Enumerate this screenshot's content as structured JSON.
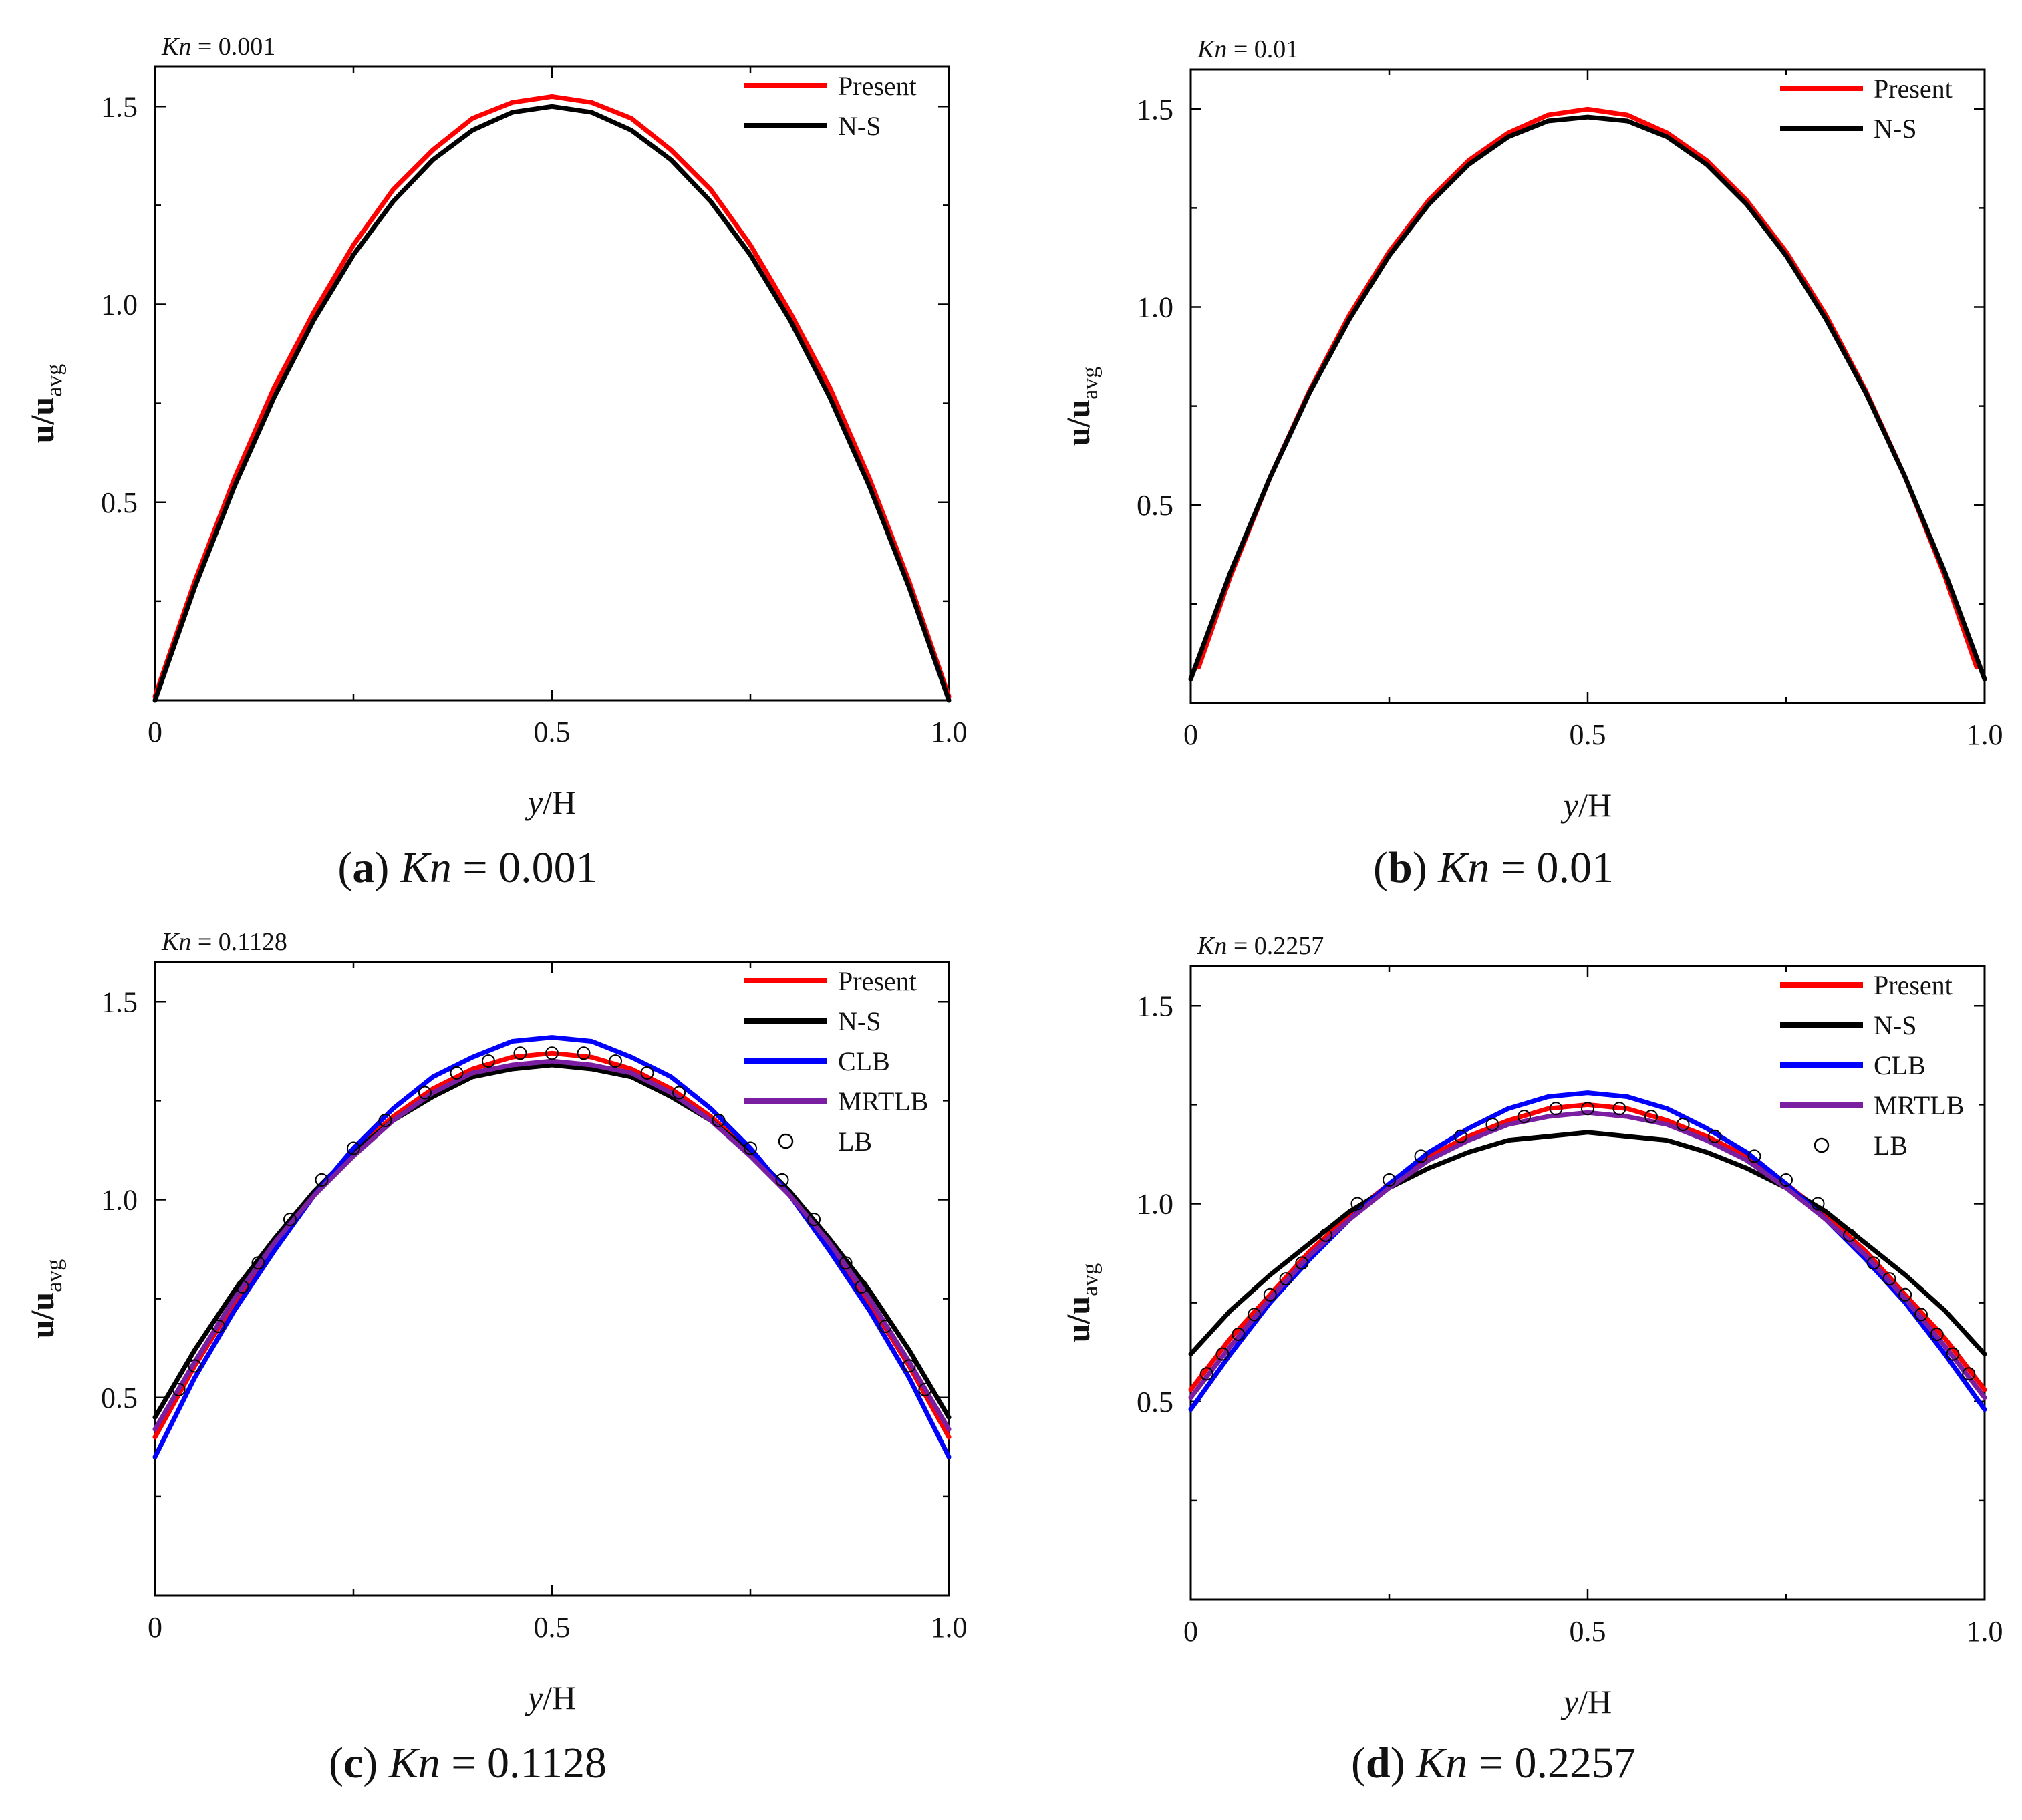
{
  "figure": {
    "panels": [
      {
        "id": "a",
        "kn_label": "Kn",
        "kn_value": " = 0.001",
        "caption_letter": "a",
        "caption_kn": "Kn",
        "caption_value": " = 0.001"
      },
      {
        "id": "b",
        "kn_label": "Kn",
        "kn_value": " = 0.01",
        "caption_letter": "b",
        "caption_kn": "Kn",
        "caption_value": " = 0.01"
      },
      {
        "id": "c",
        "kn_label": "Kn",
        "kn_value": " = 0.1128",
        "caption_letter": "c",
        "caption_kn": "Kn",
        "caption_value": " = 0.1128"
      },
      {
        "id": "d",
        "kn_label": "Kn",
        "kn_value": " = 0.2257",
        "caption_letter": "d",
        "caption_kn": "Kn",
        "caption_value": " = 0.2257"
      }
    ]
  },
  "chart_data": [
    {
      "type": "line",
      "title": "Kn = 0.001",
      "xlabel": "y/H",
      "ylabel": "u/u_avg",
      "xlim": [
        0,
        1
      ],
      "ylim": [
        0,
        1.6
      ],
      "xticks": [
        {
          "value": 0,
          "label": "0"
        },
        {
          "value": 0.5,
          "label": "0.5"
        },
        {
          "value": 1,
          "label": "1.0"
        }
      ],
      "yticks": [
        {
          "value": 0.5,
          "label": "0.5"
        },
        {
          "value": 1.0,
          "label": "1.0"
        },
        {
          "value": 1.5,
          "label": "1.5"
        }
      ],
      "legend_position": "top-right",
      "series": [
        {
          "name": "Present",
          "color": "#ff0000",
          "style": "line",
          "x": [
            0,
            0.05,
            0.1,
            0.15,
            0.2,
            0.25,
            0.3,
            0.35,
            0.4,
            0.45,
            0.5,
            0.55,
            0.6,
            0.65,
            0.7,
            0.75,
            0.8,
            0.85,
            0.9,
            0.95,
            1
          ],
          "y": [
            0.01,
            0.3,
            0.56,
            0.79,
            0.98,
            1.15,
            1.29,
            1.39,
            1.47,
            1.51,
            1.525,
            1.51,
            1.47,
            1.39,
            1.29,
            1.15,
            0.98,
            0.79,
            0.56,
            0.3,
            0.01
          ]
        },
        {
          "name": "N-S",
          "color": "#000000",
          "style": "line",
          "x": [
            0,
            0.05,
            0.1,
            0.15,
            0.2,
            0.25,
            0.3,
            0.35,
            0.4,
            0.45,
            0.5,
            0.55,
            0.6,
            0.65,
            0.7,
            0.75,
            0.8,
            0.85,
            0.9,
            0.95,
            1
          ],
          "y": [
            0,
            0.285,
            0.54,
            0.765,
            0.96,
            1.125,
            1.26,
            1.365,
            1.44,
            1.485,
            1.5,
            1.485,
            1.44,
            1.365,
            1.26,
            1.125,
            0.96,
            0.765,
            0.54,
            0.285,
            0
          ]
        }
      ]
    },
    {
      "type": "line",
      "title": "Kn = 0.01",
      "xlabel": "y/H",
      "ylabel": "u/u_avg",
      "xlim": [
        0,
        1
      ],
      "ylim": [
        0,
        1.6
      ],
      "xticks": [
        {
          "value": 0,
          "label": "0"
        },
        {
          "value": 0.5,
          "label": "0.5"
        },
        {
          "value": 1,
          "label": "1.0"
        }
      ],
      "yticks": [
        {
          "value": 0.5,
          "label": "0.5"
        },
        {
          "value": 1.0,
          "label": "1.0"
        },
        {
          "value": 1.5,
          "label": "1.5"
        }
      ],
      "legend_position": "top-right",
      "series": [
        {
          "name": "Present",
          "color": "#ff0000",
          "style": "line",
          "x": [
            0.01,
            0.05,
            0.1,
            0.15,
            0.2,
            0.25,
            0.3,
            0.35,
            0.4,
            0.45,
            0.5,
            0.55,
            0.6,
            0.65,
            0.7,
            0.75,
            0.8,
            0.85,
            0.9,
            0.95,
            0.99
          ],
          "y": [
            0.09,
            0.32,
            0.57,
            0.79,
            0.98,
            1.14,
            1.27,
            1.37,
            1.44,
            1.485,
            1.5,
            1.485,
            1.44,
            1.37,
            1.27,
            1.14,
            0.98,
            0.79,
            0.57,
            0.32,
            0.09
          ]
        },
        {
          "name": "N-S",
          "color": "#000000",
          "style": "line",
          "x": [
            0,
            0.05,
            0.1,
            0.15,
            0.2,
            0.25,
            0.3,
            0.35,
            0.4,
            0.45,
            0.5,
            0.55,
            0.6,
            0.65,
            0.7,
            0.75,
            0.8,
            0.85,
            0.9,
            0.95,
            1
          ],
          "y": [
            0.06,
            0.33,
            0.57,
            0.785,
            0.97,
            1.13,
            1.26,
            1.36,
            1.43,
            1.47,
            1.48,
            1.47,
            1.43,
            1.36,
            1.26,
            1.13,
            0.97,
            0.785,
            0.57,
            0.33,
            0.06
          ]
        }
      ]
    },
    {
      "type": "line",
      "title": "Kn = 0.1128",
      "xlabel": "y/H",
      "ylabel": "u/u_avg",
      "xlim": [
        0,
        1
      ],
      "ylim": [
        0,
        1.6
      ],
      "xticks": [
        {
          "value": 0,
          "label": "0"
        },
        {
          "value": 0.5,
          "label": "0.5"
        },
        {
          "value": 1,
          "label": "1.0"
        }
      ],
      "yticks": [
        {
          "value": 0.5,
          "label": "0.5"
        },
        {
          "value": 1.0,
          "label": "1.0"
        },
        {
          "value": 1.5,
          "label": "1.5"
        }
      ],
      "legend_position": "top-right",
      "series": [
        {
          "name": "Present",
          "color": "#ff0000",
          "style": "line",
          "x": [
            0,
            0.05,
            0.1,
            0.15,
            0.2,
            0.25,
            0.3,
            0.35,
            0.4,
            0.45,
            0.5,
            0.55,
            0.6,
            0.65,
            0.7,
            0.75,
            0.8,
            0.85,
            0.9,
            0.95,
            1
          ],
          "y": [
            0.4,
            0.58,
            0.74,
            0.88,
            1.01,
            1.12,
            1.21,
            1.28,
            1.33,
            1.36,
            1.37,
            1.36,
            1.33,
            1.28,
            1.21,
            1.12,
            1.01,
            0.88,
            0.74,
            0.58,
            0.4
          ]
        },
        {
          "name": "N-S",
          "color": "#000000",
          "style": "line",
          "x": [
            0,
            0.05,
            0.1,
            0.15,
            0.2,
            0.25,
            0.3,
            0.35,
            0.4,
            0.45,
            0.5,
            0.55,
            0.6,
            0.65,
            0.7,
            0.75,
            0.8,
            0.85,
            0.9,
            0.95,
            1
          ],
          "y": [
            0.45,
            0.62,
            0.77,
            0.9,
            1.02,
            1.12,
            1.2,
            1.26,
            1.31,
            1.33,
            1.34,
            1.33,
            1.31,
            1.26,
            1.2,
            1.12,
            1.02,
            0.9,
            0.77,
            0.62,
            0.45
          ]
        },
        {
          "name": "CLB",
          "color": "#0000ff",
          "style": "line",
          "x": [
            0,
            0.05,
            0.1,
            0.15,
            0.2,
            0.25,
            0.3,
            0.35,
            0.4,
            0.45,
            0.5,
            0.55,
            0.6,
            0.65,
            0.7,
            0.75,
            0.8,
            0.85,
            0.9,
            0.95,
            1
          ],
          "y": [
            0.35,
            0.55,
            0.72,
            0.87,
            1.01,
            1.13,
            1.23,
            1.31,
            1.36,
            1.4,
            1.41,
            1.4,
            1.36,
            1.31,
            1.23,
            1.13,
            1.01,
            0.87,
            0.72,
            0.55,
            0.35
          ]
        },
        {
          "name": "MRTLB",
          "color": "#7b1fa2",
          "style": "line",
          "x": [
            0,
            0.05,
            0.1,
            0.15,
            0.2,
            0.25,
            0.3,
            0.35,
            0.4,
            0.45,
            0.5,
            0.55,
            0.6,
            0.65,
            0.7,
            0.75,
            0.8,
            0.85,
            0.9,
            0.95,
            1
          ],
          "y": [
            0.42,
            0.59,
            0.75,
            0.89,
            1.01,
            1.11,
            1.2,
            1.27,
            1.32,
            1.34,
            1.35,
            1.34,
            1.32,
            1.27,
            1.2,
            1.11,
            1.01,
            0.89,
            0.75,
            0.59,
            0.42
          ]
        },
        {
          "name": "LB",
          "color": "#000000",
          "style": "marker",
          "x": [
            0.03,
            0.05,
            0.08,
            0.11,
            0.13,
            0.17,
            0.21,
            0.25,
            0.29,
            0.34,
            0.38,
            0.42,
            0.46,
            0.5,
            0.54,
            0.58,
            0.62,
            0.66,
            0.71,
            0.75,
            0.79,
            0.83,
            0.87,
            0.89,
            0.92,
            0.95,
            0.97
          ],
          "y": [
            0.52,
            0.58,
            0.68,
            0.78,
            0.84,
            0.95,
            1.05,
            1.13,
            1.2,
            1.27,
            1.32,
            1.35,
            1.37,
            1.37,
            1.37,
            1.35,
            1.32,
            1.27,
            1.2,
            1.13,
            1.05,
            0.95,
            0.84,
            0.78,
            0.68,
            0.58,
            0.52
          ]
        }
      ]
    },
    {
      "type": "line",
      "title": "Kn = 0.2257",
      "xlabel": "y/H",
      "ylabel": "u/u_avg",
      "xlim": [
        0,
        1
      ],
      "ylim": [
        0,
        1.6
      ],
      "xticks": [
        {
          "value": 0,
          "label": "0"
        },
        {
          "value": 0.5,
          "label": "0.5"
        },
        {
          "value": 1,
          "label": "1.0"
        }
      ],
      "yticks": [
        {
          "value": 0.5,
          "label": "0.5"
        },
        {
          "value": 1.0,
          "label": "1.0"
        },
        {
          "value": 1.5,
          "label": "1.5"
        }
      ],
      "legend_position": "top-right",
      "series": [
        {
          "name": "Present",
          "color": "#ff0000",
          "style": "line",
          "x": [
            0,
            0.05,
            0.1,
            0.15,
            0.2,
            0.25,
            0.3,
            0.35,
            0.4,
            0.45,
            0.5,
            0.55,
            0.6,
            0.65,
            0.7,
            0.75,
            0.8,
            0.85,
            0.9,
            0.95,
            1
          ],
          "y": [
            0.53,
            0.66,
            0.77,
            0.88,
            0.97,
            1.05,
            1.12,
            1.17,
            1.21,
            1.24,
            1.25,
            1.24,
            1.21,
            1.17,
            1.12,
            1.05,
            0.97,
            0.88,
            0.77,
            0.66,
            0.53
          ]
        },
        {
          "name": "N-S",
          "color": "#000000",
          "style": "line",
          "x": [
            0,
            0.05,
            0.1,
            0.15,
            0.2,
            0.25,
            0.3,
            0.35,
            0.4,
            0.45,
            0.5,
            0.55,
            0.6,
            0.65,
            0.7,
            0.75,
            0.8,
            0.85,
            0.9,
            0.95,
            1
          ],
          "y": [
            0.62,
            0.73,
            0.82,
            0.9,
            0.98,
            1.04,
            1.09,
            1.13,
            1.16,
            1.17,
            1.18,
            1.17,
            1.16,
            1.13,
            1.09,
            1.04,
            0.98,
            0.9,
            0.82,
            0.73,
            0.62
          ]
        },
        {
          "name": "CLB",
          "color": "#0000ff",
          "style": "line",
          "x": [
            0,
            0.05,
            0.1,
            0.15,
            0.2,
            0.25,
            0.3,
            0.35,
            0.4,
            0.45,
            0.5,
            0.55,
            0.6,
            0.65,
            0.7,
            0.75,
            0.8,
            0.85,
            0.9,
            0.95,
            1
          ],
          "y": [
            0.48,
            0.62,
            0.75,
            0.86,
            0.96,
            1.05,
            1.13,
            1.19,
            1.24,
            1.27,
            1.28,
            1.27,
            1.24,
            1.19,
            1.13,
            1.05,
            0.96,
            0.86,
            0.75,
            0.62,
            0.48
          ]
        },
        {
          "name": "MRTLB",
          "color": "#7b1fa2",
          "style": "line",
          "x": [
            0,
            0.05,
            0.1,
            0.15,
            0.2,
            0.25,
            0.3,
            0.35,
            0.4,
            0.45,
            0.5,
            0.55,
            0.6,
            0.65,
            0.7,
            0.75,
            0.8,
            0.85,
            0.9,
            0.95,
            1
          ],
          "y": [
            0.51,
            0.64,
            0.76,
            0.87,
            0.96,
            1.04,
            1.11,
            1.16,
            1.2,
            1.22,
            1.23,
            1.22,
            1.2,
            1.16,
            1.11,
            1.04,
            0.96,
            0.87,
            0.76,
            0.64,
            0.51
          ]
        },
        {
          "name": "LB",
          "color": "#000000",
          "style": "marker",
          "x": [
            0.02,
            0.04,
            0.06,
            0.08,
            0.1,
            0.12,
            0.14,
            0.17,
            0.21,
            0.25,
            0.29,
            0.34,
            0.38,
            0.42,
            0.46,
            0.5,
            0.54,
            0.58,
            0.62,
            0.66,
            0.71,
            0.75,
            0.79,
            0.83,
            0.86,
            0.88,
            0.9,
            0.92,
            0.94,
            0.96,
            0.98
          ],
          "y": [
            0.57,
            0.62,
            0.67,
            0.72,
            0.77,
            0.81,
            0.85,
            0.92,
            1.0,
            1.06,
            1.12,
            1.17,
            1.2,
            1.22,
            1.24,
            1.24,
            1.24,
            1.22,
            1.2,
            1.17,
            1.12,
            1.06,
            1.0,
            0.92,
            0.85,
            0.81,
            0.77,
            0.72,
            0.67,
            0.62,
            0.57
          ]
        }
      ]
    }
  ]
}
